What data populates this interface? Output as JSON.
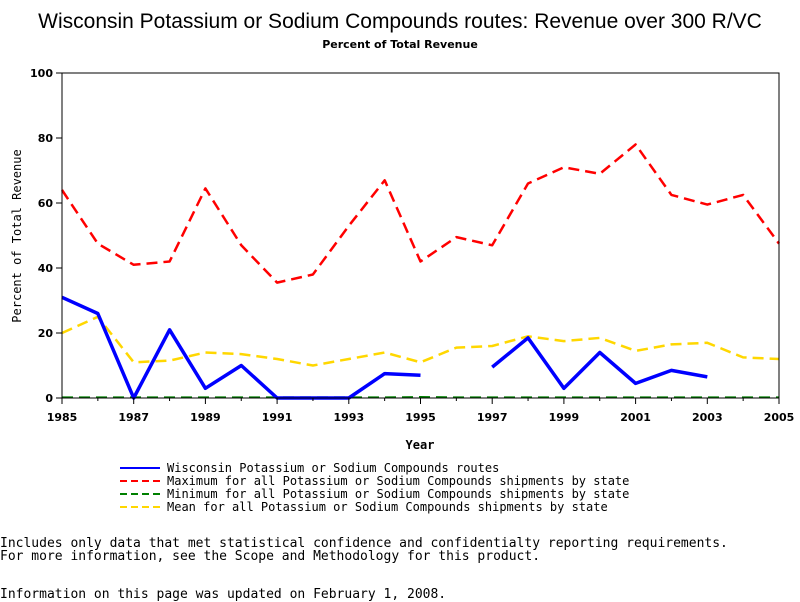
{
  "title": "Wisconsin Potassium or Sodium Compounds routes: Revenue over 300 R/VC",
  "subtitle": "Percent of Total Revenue",
  "footnotes": {
    "line1": "Includes only data that met statistical confidence and confidentialty reporting requirements.",
    "line2": "For more information, see the Scope and Methodology for this product.",
    "line3": "Information on this page was updated on February 1, 2008."
  },
  "chart_data": {
    "type": "line",
    "xlabel": "Year",
    "ylabel": "Percent of Total Revenue",
    "xlim": [
      1985,
      2005
    ],
    "ylim": [
      0,
      100
    ],
    "x_ticks": [
      1985,
      1987,
      1989,
      1991,
      1993,
      1995,
      1997,
      1999,
      2001,
      2003,
      2005
    ],
    "y_ticks": [
      0,
      20,
      40,
      60,
      80,
      100
    ],
    "legend_position": "bottom",
    "x": [
      1985,
      1986,
      1987,
      1988,
      1989,
      1990,
      1991,
      1992,
      1993,
      1994,
      1995,
      1996,
      1997,
      1998,
      1999,
      2000,
      2001,
      2002,
      2003,
      2004,
      2005
    ],
    "series": [
      {
        "name": "Wisconsin Potassium or Sodium Compounds routes",
        "color": "#0000ff",
        "style": "solid",
        "values": [
          31,
          26,
          0,
          21,
          3,
          10,
          0,
          0,
          0,
          7.5,
          7,
          null,
          9.5,
          18.5,
          3,
          14,
          4.5,
          8.5,
          6.5,
          null,
          null
        ]
      },
      {
        "name": "Maximum for all Potassium or Sodium Compounds shipments by state",
        "color": "#ff0000",
        "style": "dashed",
        "values": [
          64,
          47.5,
          41,
          42,
          64.5,
          47,
          35.5,
          38,
          53,
          67,
          42,
          49.5,
          47,
          66,
          71,
          69,
          78,
          62.5,
          59.5,
          62.5,
          47.5
        ]
      },
      {
        "name": "Minimum for all Potassium or Sodium Compounds shipments by state",
        "color": "#008000",
        "style": "dashed",
        "values": [
          0.2,
          0.2,
          0.2,
          0.2,
          0.2,
          0.2,
          0.2,
          0.2,
          0.2,
          0.2,
          0.3,
          0.2,
          0.2,
          0.2,
          0.2,
          0.2,
          0.2,
          0.2,
          0.2,
          0.2,
          0.2
        ]
      },
      {
        "name": "Mean for all Potassium or Sodium Compounds shipments by state",
        "color": "#ffd700",
        "style": "dashed",
        "values": [
          20,
          25,
          11,
          11.5,
          14,
          13.5,
          12,
          10,
          12,
          14,
          11,
          15.5,
          16,
          19,
          17.5,
          18.5,
          14.5,
          16.5,
          17,
          12.5,
          12
        ]
      }
    ]
  }
}
